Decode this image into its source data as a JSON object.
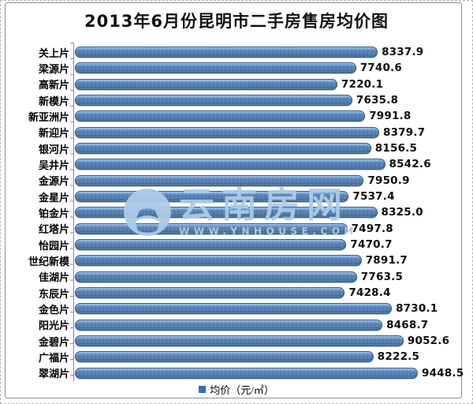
{
  "chart_data": {
    "type": "bar",
    "orientation": "horizontal",
    "title": "2013年6月份昆明市二手房售房均价图",
    "legend_label": "均价（元/㎡）",
    "legend_position": "bottom",
    "grid": false,
    "value_labels_shown": true,
    "xlim": [
      0,
      9448.5
    ],
    "categories": [
      "关上片",
      "梁源片",
      "高新片",
      "新模片",
      "新亚洲片",
      "新迎片",
      "银河片",
      "吴井片",
      "金源片",
      "金星片",
      "铂金片",
      "红塔片",
      "怡园片",
      "世纪新模",
      "佳湖片",
      "东辰片",
      "金色片",
      "阳光片",
      "金碧片",
      "广福片",
      "翠湖片"
    ],
    "values": [
      8337.9,
      7740.6,
      7220.1,
      7635.8,
      7991.8,
      8379.7,
      8156.5,
      8542.6,
      7950.9,
      7537.4,
      8325.0,
      7497.8,
      7470.7,
      7891.7,
      7763.5,
      7428.4,
      8730.1,
      8468.7,
      9052.6,
      8222.5,
      9448.5
    ],
    "colors": {
      "bar": "#4f81bd",
      "bar_border": "#2e5984",
      "legend_marker": "#3a6cb0"
    }
  },
  "watermark": {
    "text": "云南房网",
    "url": "WWW.YNHOUSE.COM",
    "logo": "house-in-circle",
    "color": "#adcae8"
  }
}
